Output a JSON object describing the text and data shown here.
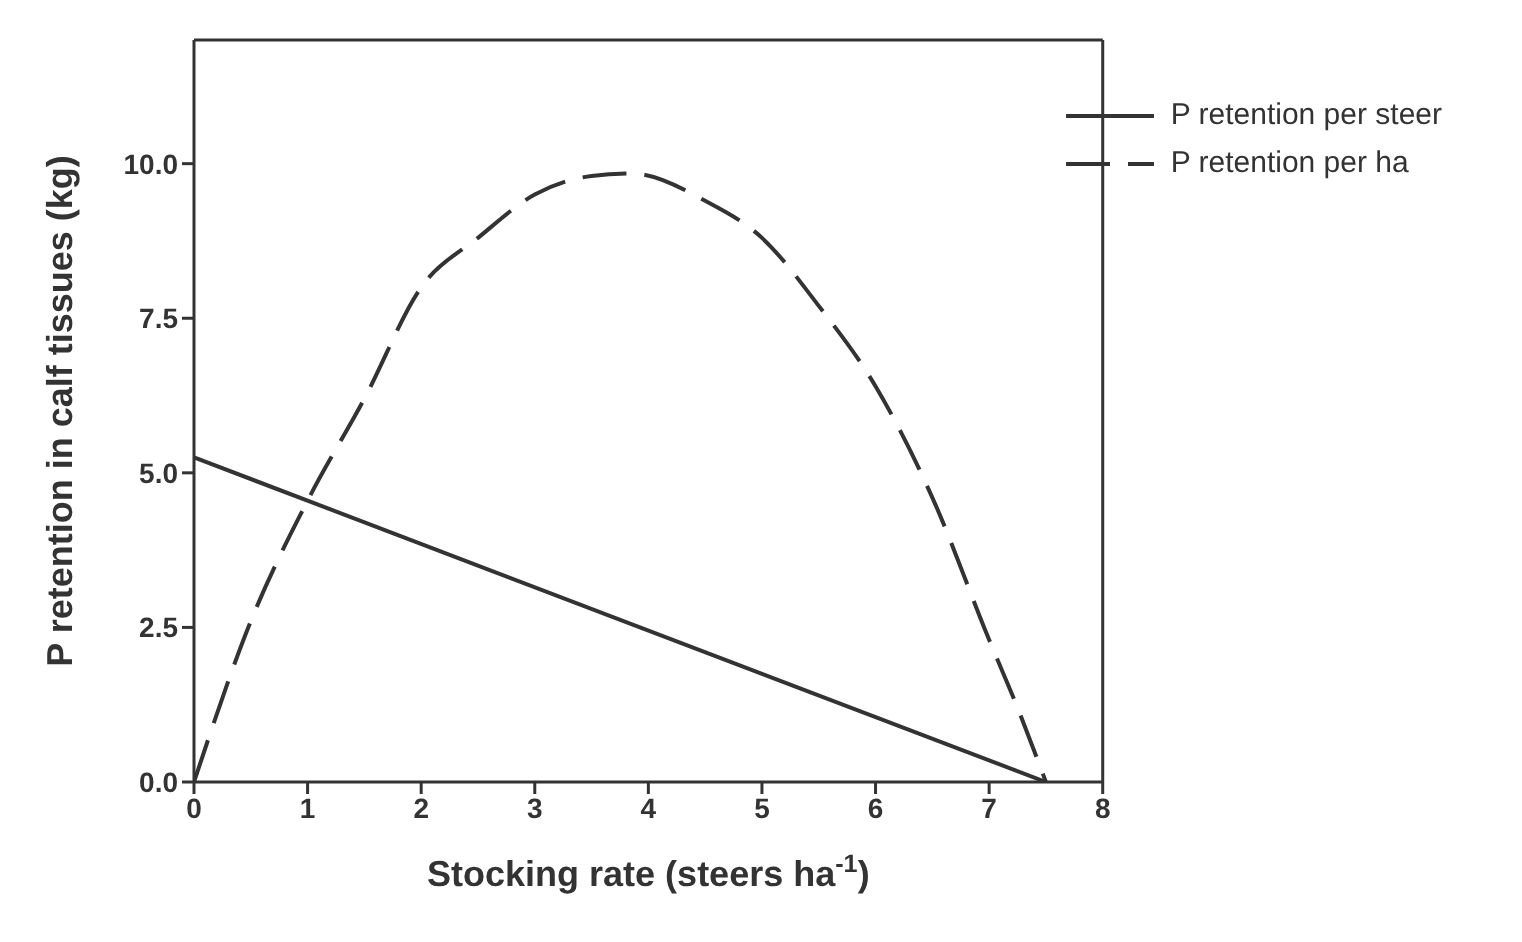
{
  "chart_data": {
    "type": "line",
    "xlabel": "Stocking rate (steers ha$^{-1}$)",
    "ylabel": "P retention in calf tissues (kg)",
    "xlim": [
      0,
      8
    ],
    "xticks": [
      0,
      1,
      2,
      3,
      4,
      5,
      6,
      7,
      8
    ],
    "ylim": [
      0,
      12
    ],
    "yticks": [
      {
        "value": 0,
        "label": "0.0"
      },
      {
        "value": 2.5,
        "label": "2.5"
      },
      {
        "value": 5,
        "label": "5.0"
      },
      {
        "value": 7.5,
        "label": "7.5"
      },
      {
        "value": 10,
        "label": "10.0"
      }
    ],
    "grid": false,
    "legend": "top right",
    "marker": "none",
    "series": [
      {
        "name": "P retention per steer",
        "color": "#333333",
        "line_style": "solid",
        "x": [
          0,
          7.5
        ],
        "values": [
          5.25,
          0
        ]
      },
      {
        "name": "P retention per ha",
        "color": "#333333",
        "line_style": "dashed",
        "x": [
          0,
          0.5,
          1,
          1.5,
          2,
          2.5,
          3,
          3.5,
          3.85,
          4.5,
          5,
          5.5,
          6,
          6.5,
          7,
          7.25,
          7.5
        ],
        "values": [
          0,
          2.6,
          4.55,
          6.2,
          8.0,
          8.8,
          9.5,
          9.8,
          9.84,
          9.4,
          8.8,
          7.7,
          6.4,
          4.6,
          2.3,
          1.2,
          0
        ]
      }
    ]
  }
}
